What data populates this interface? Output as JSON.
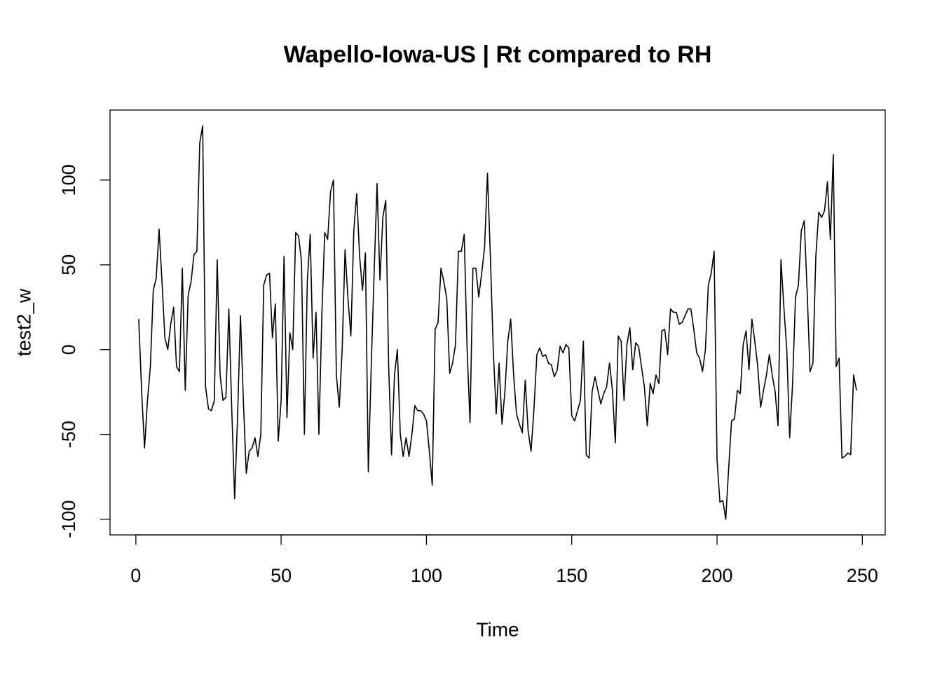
{
  "chart_data": {
    "type": "line",
    "title": "Wapello-Iowa-US | Rt compared to RH",
    "xlabel": "Time",
    "ylabel": "test2_w",
    "xlim": [
      -8.88,
      257.88
    ],
    "ylim": [
      -109.28,
      141.28
    ],
    "xticks": [
      0,
      50,
      100,
      150,
      200,
      250
    ],
    "yticks": [
      -100,
      -50,
      0,
      50,
      100
    ],
    "x": [
      1,
      2,
      3,
      4,
      5,
      6,
      7,
      8,
      9,
      10,
      11,
      12,
      13,
      14,
      15,
      16,
      17,
      18,
      19,
      20,
      21,
      22,
      23,
      24,
      25,
      26,
      27,
      28,
      29,
      30,
      31,
      32,
      33,
      34,
      35,
      36,
      37,
      38,
      39,
      40,
      41,
      42,
      43,
      44,
      45,
      46,
      47,
      48,
      49,
      50,
      51,
      52,
      53,
      54,
      55,
      56,
      57,
      58,
      59,
      60,
      61,
      62,
      63,
      64,
      65,
      66,
      67,
      68,
      69,
      70,
      71,
      72,
      73,
      74,
      75,
      76,
      77,
      78,
      79,
      80,
      81,
      82,
      83,
      84,
      85,
      86,
      87,
      88,
      89,
      90,
      91,
      92,
      93,
      94,
      95,
      96,
      97,
      98,
      99,
      100,
      101,
      102,
      103,
      104,
      105,
      106,
      107,
      108,
      109,
      110,
      111,
      112,
      113,
      114,
      115,
      116,
      117,
      118,
      119,
      120,
      121,
      122,
      123,
      124,
      125,
      126,
      127,
      128,
      129,
      130,
      131,
      132,
      133,
      134,
      135,
      136,
      137,
      138,
      139,
      140,
      141,
      142,
      143,
      144,
      145,
      146,
      147,
      148,
      149,
      150,
      151,
      152,
      153,
      154,
      155,
      156,
      157,
      158,
      159,
      160,
      161,
      162,
      163,
      164,
      165,
      166,
      167,
      168,
      169,
      170,
      171,
      172,
      173,
      174,
      175,
      176,
      177,
      178,
      179,
      180,
      181,
      182,
      183,
      184,
      185,
      186,
      187,
      188,
      189,
      190,
      191,
      192,
      193,
      194,
      195,
      196,
      197,
      198,
      199,
      200,
      201,
      202,
      203,
      204,
      205,
      206,
      207,
      208,
      209,
      210,
      211,
      212,
      213,
      214,
      215,
      216,
      217,
      218,
      219,
      220,
      221,
      222,
      223,
      224,
      225,
      226,
      227,
      228,
      229,
      230,
      231,
      232,
      233,
      234,
      235,
      236,
      237,
      238,
      239,
      240,
      241,
      242,
      243,
      244,
      245,
      246,
      247,
      248
    ],
    "series": [
      {
        "color": "#000000",
        "values": [
          18,
          -25,
          -58,
          -30,
          -10,
          35,
          42,
          71,
          40,
          7,
          0,
          15,
          25,
          -10,
          -13,
          48,
          -24,
          32,
          40,
          56,
          58,
          122,
          132,
          -22,
          -35,
          -36,
          -30,
          53,
          -15,
          -30,
          -28,
          24,
          -35,
          -88,
          -40,
          20,
          -30,
          -73,
          -60,
          -58,
          -52,
          -63,
          -50,
          38,
          44,
          45,
          7,
          27,
          -54,
          -30,
          55,
          -40,
          10,
          0,
          69,
          67,
          52,
          -50,
          40,
          68,
          -5,
          22,
          -50,
          20,
          69,
          65,
          93,
          100,
          -15,
          -34,
          0,
          59,
          30,
          8,
          70,
          92,
          55,
          35,
          57,
          -72,
          -10,
          45,
          98,
          41,
          78,
          88,
          -10,
          -62,
          -15,
          0,
          -50,
          -63,
          -52,
          -63,
          -50,
          -33,
          -36,
          -36,
          -38,
          -42,
          -60,
          -80,
          12,
          16,
          48,
          40,
          30,
          -14,
          -8,
          3,
          58,
          58,
          68,
          0,
          -43,
          48,
          48,
          31,
          45,
          60,
          104,
          55,
          0,
          -38,
          -8,
          -44,
          -25,
          5,
          18,
          -15,
          -38,
          -44,
          -49,
          -18,
          -48,
          -60,
          -35,
          -3,
          1,
          -4,
          -3,
          -8,
          -9,
          -16,
          -12,
          2,
          -2,
          3,
          1,
          -39,
          -42,
          -36,
          -30,
          5,
          -62,
          -64,
          -25,
          -16,
          -24,
          -32,
          -26,
          -22,
          -8,
          -24,
          -55,
          8,
          5,
          -30,
          3,
          13,
          -12,
          4,
          2,
          -10,
          -22,
          -45,
          -20,
          -26,
          -15,
          -20,
          11,
          12,
          -3,
          24,
          22,
          22,
          15,
          16,
          20,
          24,
          24,
          12,
          -2,
          -5,
          -13,
          0,
          38,
          45,
          58,
          -65,
          -90,
          -89,
          -100,
          -70,
          -42,
          -41,
          -24,
          -26,
          3,
          11,
          -12,
          18,
          5,
          -10,
          -34,
          -24,
          -15,
          -3,
          -15,
          -25,
          -45,
          53,
          25,
          0,
          -52,
          -20,
          31,
          38,
          70,
          76,
          35,
          -13,
          -8,
          55,
          81,
          78,
          82,
          99,
          65,
          115,
          -10,
          -5,
          -64,
          -63,
          -61,
          -62,
          -15,
          -24
        ]
      }
    ]
  }
}
